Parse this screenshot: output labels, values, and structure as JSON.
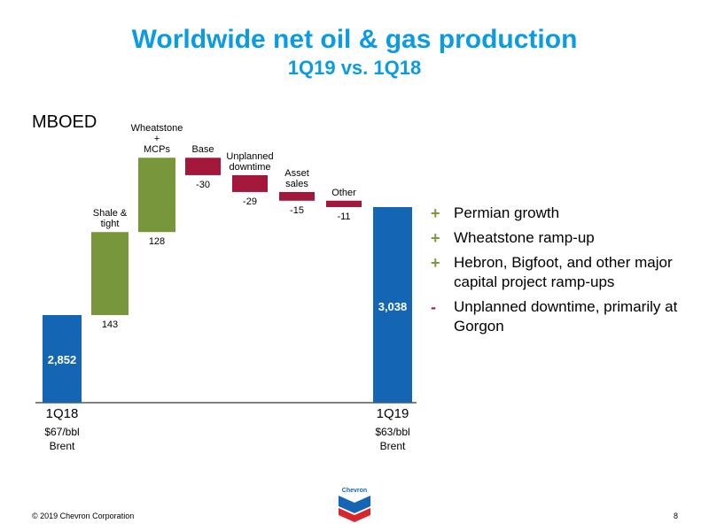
{
  "header": {
    "title": "Worldwide net oil & gas production",
    "subtitle": "1Q19 vs. 1Q18"
  },
  "chart_data": {
    "type": "waterfall",
    "unit_label": "MBOED",
    "colors": {
      "total": "#1565b5",
      "increase": "#78973a",
      "decrease": "#a3173a"
    },
    "bars": [
      {
        "kind": "total",
        "label": "1Q18",
        "value": 2852,
        "value_label": "2,852",
        "sub_label": [
          "$67/bbl",
          "Brent"
        ]
      },
      {
        "kind": "increase",
        "label": [
          "Shale &",
          "tight"
        ],
        "value": 143,
        "value_label": "143"
      },
      {
        "kind": "increase",
        "label": [
          "Wheatstone",
          "+",
          "MCPs"
        ],
        "value": 128,
        "value_label": "128"
      },
      {
        "kind": "decrease",
        "label": [
          "Base"
        ],
        "value": -30,
        "value_label": "-30"
      },
      {
        "kind": "decrease",
        "label": [
          "Unplanned",
          "downtime"
        ],
        "value": -29,
        "value_label": "-29"
      },
      {
        "kind": "decrease",
        "label": [
          "Asset",
          "sales"
        ],
        "value": -15,
        "value_label": "-15"
      },
      {
        "kind": "decrease",
        "label": [
          "Other"
        ],
        "value": -11,
        "value_label": "-11"
      },
      {
        "kind": "total",
        "label": "1Q19",
        "value": 3038,
        "value_label": "3,038",
        "sub_label": [
          "$63/bbl",
          "Brent"
        ]
      }
    ]
  },
  "bullets": [
    {
      "symbol": "+",
      "type": "plus",
      "text": "Permian growth"
    },
    {
      "symbol": "+",
      "type": "plus",
      "text": "Wheatstone ramp-up"
    },
    {
      "symbol": "+",
      "type": "plus",
      "text": "Hebron, Bigfoot, and other major capital project ramp-ups"
    },
    {
      "symbol": "-",
      "type": "minus",
      "text": "Unplanned downtime, primarily at Gorgon"
    }
  ],
  "footer": {
    "copyright": "© 2019 Chevron Corporation",
    "page_number": "8",
    "logo_text": "Chevron",
    "logo_icon": "chevron-logo-icon"
  }
}
